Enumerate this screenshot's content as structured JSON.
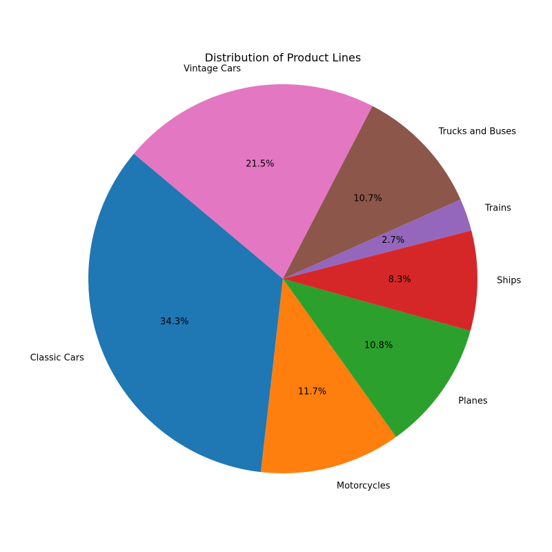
{
  "chart_data": {
    "type": "pie",
    "title": "Distribution of Product Lines",
    "start_angle_deg": 140,
    "direction": "counterclockwise",
    "slices": [
      {
        "label": "Classic Cars",
        "value": 34.3,
        "pct_label": "34.3%",
        "color": "#1f77b4"
      },
      {
        "label": "Motorcycles",
        "value": 11.7,
        "pct_label": "11.7%",
        "color": "#ff7f0e"
      },
      {
        "label": "Planes",
        "value": 10.8,
        "pct_label": "10.8%",
        "color": "#2ca02c"
      },
      {
        "label": "Ships",
        "value": 8.3,
        "pct_label": "8.3%",
        "color": "#d62728"
      },
      {
        "label": "Trains",
        "value": 2.7,
        "pct_label": "2.7%",
        "color": "#9467bd"
      },
      {
        "label": "Trucks and Buses",
        "value": 10.7,
        "pct_label": "10.7%",
        "color": "#8c564b"
      },
      {
        "label": "Vintage Cars",
        "value": 21.5,
        "pct_label": "21.5%",
        "color": "#e377c2"
      }
    ]
  }
}
